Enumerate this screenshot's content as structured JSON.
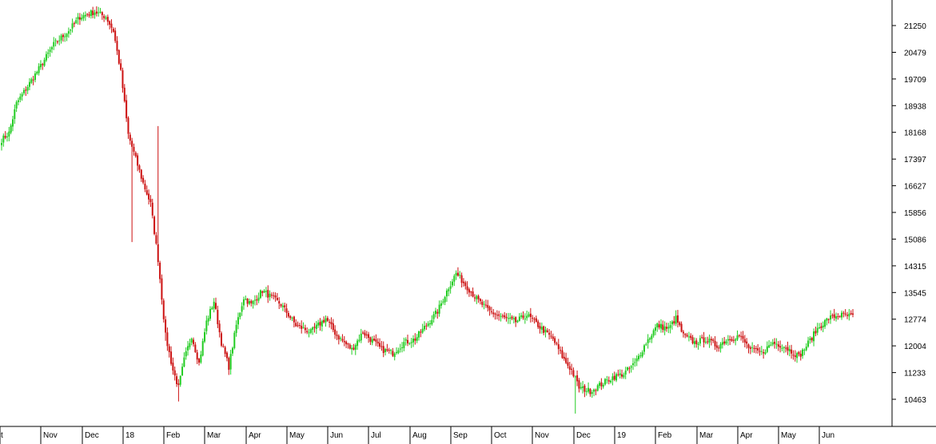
{
  "chart_data": {
    "type": "candlestick",
    "title": "",
    "xlabel": "",
    "ylabel": "",
    "ylim": [
      10000,
      21700
    ],
    "grid": false,
    "legend": "none",
    "colors": {
      "up": "#22cc22",
      "down": "#cc1111",
      "axis": "#000000",
      "background": "#ffffff"
    },
    "y_ticks": [
      "21250",
      "20479",
      "19709",
      "18938",
      "18168",
      "17397",
      "16627",
      "15856",
      "15086",
      "14315",
      "13545",
      "12774",
      "12004",
      "11233",
      "10463"
    ],
    "x_labels": [
      "ct",
      "Nov",
      "Dec",
      "18",
      "Feb",
      "Mar",
      "Apr",
      "May",
      "Jun",
      "Jul",
      "Aug",
      "Sep",
      "Oct",
      "Nov",
      "Dec",
      "19",
      "Feb",
      "Mar",
      "Apr",
      "May",
      "Jun"
    ],
    "x_label_index": [
      0,
      22,
      44,
      66,
      88,
      110,
      132,
      154,
      176,
      198,
      220,
      242,
      264,
      286,
      308,
      330,
      352,
      374,
      396,
      418,
      440
    ],
    "num_sessions": 458,
    "price_path": [
      [
        0,
        17950
      ],
      [
        4,
        18150
      ],
      [
        8,
        19000
      ],
      [
        14,
        19500
      ],
      [
        20,
        20000
      ],
      [
        28,
        20700
      ],
      [
        36,
        21100
      ],
      [
        42,
        21500
      ],
      [
        50,
        21650
      ],
      [
        56,
        21500
      ],
      [
        60,
        21100
      ],
      [
        64,
        19900
      ],
      [
        68,
        18100
      ],
      [
        72,
        17400
      ],
      [
        76,
        16700
      ],
      [
        80,
        16100
      ],
      [
        84,
        14500
      ],
      [
        88,
        12300
      ],
      [
        92,
        11300
      ],
      [
        95,
        10800
      ],
      [
        98,
        11600
      ],
      [
        102,
        12300
      ],
      [
        106,
        11500
      ],
      [
        110,
        12700
      ],
      [
        114,
        13300
      ],
      [
        118,
        12100
      ],
      [
        122,
        11400
      ],
      [
        126,
        12600
      ],
      [
        130,
        13400
      ],
      [
        134,
        13200
      ],
      [
        140,
        13600
      ],
      [
        150,
        13200
      ],
      [
        158,
        12600
      ],
      [
        166,
        12400
      ],
      [
        174,
        12800
      ],
      [
        180,
        12300
      ],
      [
        188,
        11900
      ],
      [
        194,
        12400
      ],
      [
        200,
        12100
      ],
      [
        204,
        11900
      ],
      [
        210,
        11800
      ],
      [
        216,
        12100
      ],
      [
        222,
        12200
      ],
      [
        228,
        12600
      ],
      [
        234,
        13000
      ],
      [
        240,
        13700
      ],
      [
        244,
        14100
      ],
      [
        250,
        13700
      ],
      [
        256,
        13300
      ],
      [
        262,
        13000
      ],
      [
        270,
        12800
      ],
      [
        276,
        12700
      ],
      [
        282,
        12900
      ],
      [
        288,
        12600
      ],
      [
        296,
        12200
      ],
      [
        302,
        11600
      ],
      [
        306,
        11300
      ],
      [
        310,
        10800
      ],
      [
        316,
        10700
      ],
      [
        322,
        10900
      ],
      [
        328,
        11100
      ],
      [
        334,
        11200
      ],
      [
        340,
        11500
      ],
      [
        346,
        12100
      ],
      [
        352,
        12600
      ],
      [
        358,
        12500
      ],
      [
        362,
        12800
      ],
      [
        366,
        12300
      ],
      [
        372,
        12100
      ],
      [
        378,
        12200
      ],
      [
        384,
        12000
      ],
      [
        390,
        12200
      ],
      [
        396,
        12300
      ],
      [
        402,
        11900
      ],
      [
        408,
        11800
      ],
      [
        414,
        12100
      ],
      [
        420,
        12000
      ],
      [
        428,
        11700
      ],
      [
        432,
        12000
      ],
      [
        438,
        12500
      ],
      [
        444,
        12800
      ],
      [
        450,
        12900
      ],
      [
        457,
        12850
      ]
    ]
  }
}
